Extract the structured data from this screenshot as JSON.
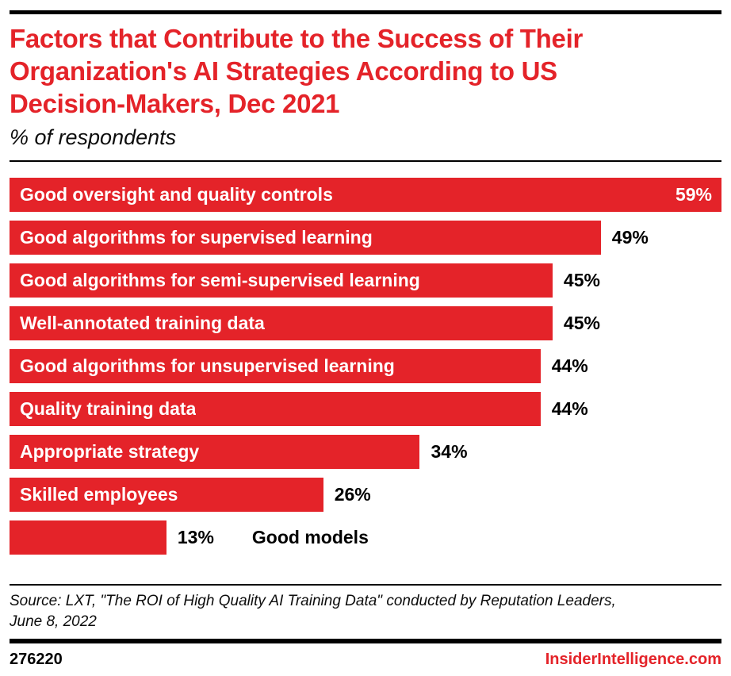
{
  "brand": {
    "accent_red": "#e42329",
    "text_black": "#000000"
  },
  "header": {
    "title_lines": [
      "Factors that Contribute to the Success of Their",
      "Organization's AI Strategies According to US",
      "Decision-Makers, Dec 2021"
    ],
    "subtitle": "% of respondents"
  },
  "chart_data": {
    "type": "bar",
    "orientation": "horizontal",
    "title": "Factors that Contribute to the Success of Their Organization's AI Strategies According to US Decision-Makers, Dec 2021",
    "subtitle": "% of respondents",
    "unit": "%",
    "xlim": [
      0,
      59
    ],
    "grid": false,
    "legend": false,
    "categories": [
      "Good oversight and quality controls",
      "Good algorithms for supervised learning",
      "Good algorithms for semi-supervised learning",
      "Well-annotated training data",
      "Good algorithms for unsupervised learning",
      "Quality training data",
      "Appropriate strategy",
      "Skilled employees",
      "Good models"
    ],
    "values": [
      59,
      49,
      45,
      45,
      44,
      44,
      34,
      26,
      13
    ],
    "rows": [
      {
        "label": "Good oversight and quality controls",
        "value": 59,
        "display": "59%",
        "label_inside": true,
        "value_inside": true
      },
      {
        "label": "Good algorithms for supervised learning",
        "value": 49,
        "display": "49%",
        "label_inside": true,
        "value_inside": false
      },
      {
        "label": "Good algorithms for semi-supervised learning",
        "value": 45,
        "display": "45%",
        "label_inside": true,
        "value_inside": false
      },
      {
        "label": "Well-annotated training data",
        "value": 45,
        "display": "45%",
        "label_inside": true,
        "value_inside": false
      },
      {
        "label": "Good algorithms for unsupervised learning",
        "value": 44,
        "display": "44%",
        "label_inside": true,
        "value_inside": false
      },
      {
        "label": "Quality training data",
        "value": 44,
        "display": "44%",
        "label_inside": true,
        "value_inside": false
      },
      {
        "label": "Appropriate strategy",
        "value": 34,
        "display": "34%",
        "label_inside": true,
        "value_inside": false
      },
      {
        "label": "Skilled employees",
        "value": 26,
        "display": "26%",
        "label_inside": true,
        "value_inside": false
      },
      {
        "label": "Good models",
        "value": 13,
        "display": "13%",
        "label_inside": false,
        "value_inside": false
      }
    ]
  },
  "footer": {
    "source_lines": [
      "Source: LXT, \"The ROI of High Quality AI Training Data\" conducted by Reputation Leaders,",
      "June 8, 2022"
    ],
    "chart_id": "276220",
    "site": "InsiderIntelligence.com"
  }
}
